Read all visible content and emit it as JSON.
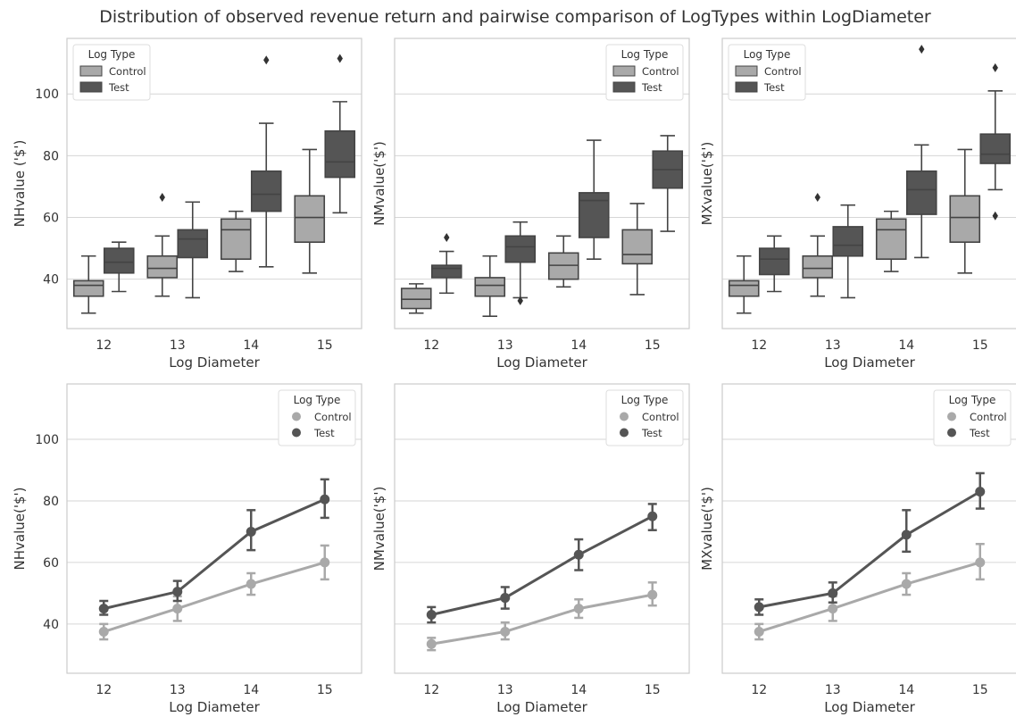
{
  "title": "Distribution of observed revenue return and pairwise comparison of LogTypes within LogDiameter",
  "colors": {
    "control": "#a9a9a9",
    "test": "#555555",
    "grid": "#d6d6d6",
    "frame": "#cccccc",
    "text": "#333333"
  },
  "chart_data": [
    {
      "type": "box",
      "ylabel": "NHvalue ('$')",
      "xlabel": "Log Diameter",
      "categories": [
        "12",
        "13",
        "14",
        "15"
      ],
      "ylim": [
        24,
        118
      ],
      "yticks": [
        40,
        60,
        80,
        100
      ],
      "legend": {
        "title": "Log Type",
        "position": "top-left",
        "entries": [
          "Control",
          "Test"
        ]
      },
      "series": [
        {
          "name": "Control",
          "boxes": [
            {
              "whislo": 29,
              "q1": 34.5,
              "med": 38,
              "q3": 39.5,
              "whishi": 47.5,
              "fliers": []
            },
            {
              "whislo": 34.5,
              "q1": 40.5,
              "med": 43.5,
              "q3": 47.5,
              "whishi": 54,
              "fliers": [
                66.5
              ]
            },
            {
              "whislo": 42.5,
              "q1": 46.5,
              "med": 56,
              "q3": 59.5,
              "whishi": 62,
              "fliers": []
            },
            {
              "whislo": 42,
              "q1": 52,
              "med": 60,
              "q3": 67,
              "whishi": 82,
              "fliers": []
            }
          ]
        },
        {
          "name": "Test",
          "boxes": [
            {
              "whislo": 36,
              "q1": 42,
              "med": 45.5,
              "q3": 50,
              "whishi": 52,
              "fliers": []
            },
            {
              "whislo": 34,
              "q1": 47,
              "med": 53,
              "q3": 56,
              "whishi": 65,
              "fliers": []
            },
            {
              "whislo": 44,
              "q1": 62,
              "med": 67.5,
              "q3": 75,
              "whishi": 90.5,
              "fliers": [
                111
              ]
            },
            {
              "whislo": 61.5,
              "q1": 73,
              "med": 78,
              "q3": 88,
              "whishi": 97.5,
              "fliers": [
                111.5
              ]
            }
          ]
        }
      ]
    },
    {
      "type": "box",
      "ylabel": "NMvalue('$')",
      "xlabel": "Log Diameter",
      "categories": [
        "12",
        "13",
        "14",
        "15"
      ],
      "ylim": [
        24,
        118
      ],
      "yticks": [
        40,
        60,
        80,
        100
      ],
      "legend": {
        "title": "Log Type",
        "position": "top-right",
        "entries": [
          "Control",
          "Test"
        ]
      },
      "series": [
        {
          "name": "Control",
          "boxes": [
            {
              "whislo": 29,
              "q1": 30.5,
              "med": 33.5,
              "q3": 37,
              "whishi": 38.5,
              "fliers": []
            },
            {
              "whislo": 28,
              "q1": 34.5,
              "med": 38,
              "q3": 40.5,
              "whishi": 47.5,
              "fliers": []
            },
            {
              "whislo": 37.5,
              "q1": 40,
              "med": 44.5,
              "q3": 48.5,
              "whishi": 54,
              "fliers": []
            },
            {
              "whislo": 35,
              "q1": 45,
              "med": 48,
              "q3": 56,
              "whishi": 64.5,
              "fliers": []
            }
          ]
        },
        {
          "name": "Test",
          "boxes": [
            {
              "whislo": 35.5,
              "q1": 40.5,
              "med": 43.5,
              "q3": 44.5,
              "whishi": 49,
              "fliers": [
                53.5
              ]
            },
            {
              "whislo": 34,
              "q1": 45.5,
              "med": 50.5,
              "q3": 54,
              "whishi": 58.5,
              "fliers": [
                33
              ]
            },
            {
              "whislo": 46.5,
              "q1": 53.5,
              "med": 65.5,
              "q3": 68,
              "whishi": 85,
              "fliers": []
            },
            {
              "whislo": 55.5,
              "q1": 69.5,
              "med": 75.5,
              "q3": 81.5,
              "whishi": 86.5,
              "fliers": []
            }
          ]
        }
      ]
    },
    {
      "type": "box",
      "ylabel": "MXvalue('$')",
      "xlabel": "Log Diameter",
      "categories": [
        "12",
        "13",
        "14",
        "15"
      ],
      "ylim": [
        24,
        118
      ],
      "yticks": [
        40,
        60,
        80,
        100
      ],
      "legend": {
        "title": "Log Type",
        "position": "top-left",
        "entries": [
          "Control",
          "Test"
        ]
      },
      "series": [
        {
          "name": "Control",
          "boxes": [
            {
              "whislo": 29,
              "q1": 34.5,
              "med": 38,
              "q3": 39.5,
              "whishi": 47.5,
              "fliers": []
            },
            {
              "whislo": 34.5,
              "q1": 40.5,
              "med": 43.5,
              "q3": 47.5,
              "whishi": 54,
              "fliers": [
                66.5
              ]
            },
            {
              "whislo": 42.5,
              "q1": 46.5,
              "med": 56,
              "q3": 59.5,
              "whishi": 62,
              "fliers": []
            },
            {
              "whislo": 42,
              "q1": 52,
              "med": 60,
              "q3": 67,
              "whishi": 82,
              "fliers": []
            }
          ]
        },
        {
          "name": "Test",
          "boxes": [
            {
              "whislo": 36,
              "q1": 41.5,
              "med": 46.5,
              "q3": 50,
              "whishi": 54,
              "fliers": []
            },
            {
              "whislo": 34,
              "q1": 47.5,
              "med": 51,
              "q3": 57,
              "whishi": 64,
              "fliers": []
            },
            {
              "whislo": 47,
              "q1": 61,
              "med": 69,
              "q3": 75,
              "whishi": 83.5,
              "fliers": [
                114.5
              ]
            },
            {
              "whislo": 69,
              "q1": 77.5,
              "med": 80.5,
              "q3": 87,
              "whishi": 101,
              "fliers": [
                108.5,
                60.5
              ]
            }
          ]
        }
      ]
    },
    {
      "type": "line",
      "ylabel": "NHvalue('$')",
      "xlabel": "Log Diameter",
      "categories": [
        "12",
        "13",
        "14",
        "15"
      ],
      "ylim": [
        24,
        118
      ],
      "yticks": [
        40,
        60,
        80,
        100
      ],
      "legend": {
        "title": "Log Type",
        "position": "top-right",
        "entries": [
          "Control",
          "Test"
        ]
      },
      "series": [
        {
          "name": "Control",
          "values": [
            37.5,
            45,
            53,
            60
          ],
          "err_low": [
            35,
            41,
            49.5,
            54.5
          ],
          "err_high": [
            40,
            49,
            56.5,
            65.5
          ]
        },
        {
          "name": "Test",
          "values": [
            45,
            50.5,
            70,
            80.5
          ],
          "err_low": [
            43,
            47.5,
            64,
            74.5
          ],
          "err_high": [
            47.5,
            54,
            77,
            87
          ]
        }
      ]
    },
    {
      "type": "line",
      "ylabel": "NMvalue('$')",
      "xlabel": "Log Diameter",
      "categories": [
        "12",
        "13",
        "14",
        "15"
      ],
      "ylim": [
        24,
        118
      ],
      "yticks": [
        40,
        60,
        80,
        100
      ],
      "legend": {
        "title": "Log Type",
        "position": "top-right",
        "entries": [
          "Control",
          "Test"
        ]
      },
      "series": [
        {
          "name": "Control",
          "values": [
            33.5,
            37.5,
            45,
            49.5
          ],
          "err_low": [
            31.5,
            35,
            42,
            46
          ],
          "err_high": [
            35.5,
            40.5,
            48,
            53.5
          ]
        },
        {
          "name": "Test",
          "values": [
            43,
            48.5,
            62.5,
            75
          ],
          "err_low": [
            40.5,
            45,
            57.5,
            70.5
          ],
          "err_high": [
            45.5,
            52,
            67.5,
            79
          ]
        }
      ]
    },
    {
      "type": "line",
      "ylabel": "MXvalue('$')",
      "xlabel": "Log Diameter",
      "categories": [
        "12",
        "13",
        "14",
        "15"
      ],
      "ylim": [
        24,
        118
      ],
      "yticks": [
        40,
        60,
        80,
        100
      ],
      "legend": {
        "title": "Log Type",
        "position": "top-right",
        "entries": [
          "Control",
          "Test"
        ]
      },
      "series": [
        {
          "name": "Control",
          "values": [
            37.5,
            45,
            53,
            60
          ],
          "err_low": [
            35,
            41,
            49.5,
            54.5
          ],
          "err_high": [
            40,
            49,
            56.5,
            66
          ]
        },
        {
          "name": "Test",
          "values": [
            45.5,
            50,
            69,
            83
          ],
          "err_low": [
            43,
            47,
            63.5,
            77.5
          ],
          "err_high": [
            48,
            53.5,
            77,
            89
          ]
        }
      ]
    }
  ]
}
